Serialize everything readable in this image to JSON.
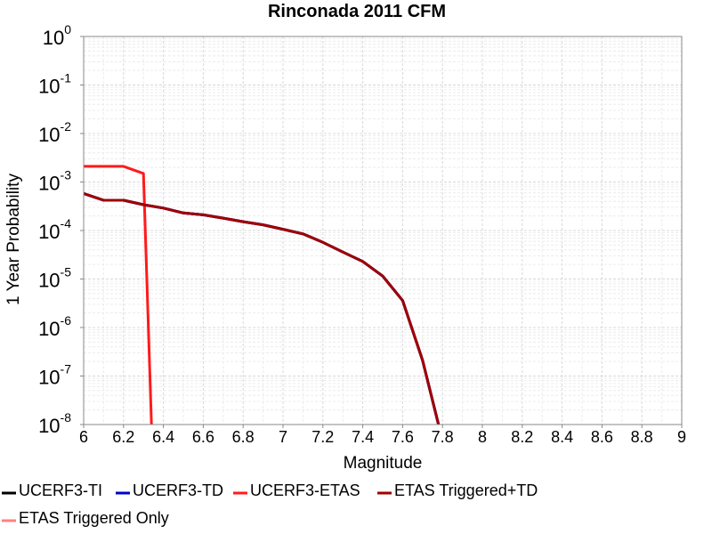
{
  "chart_data": {
    "type": "line",
    "title": "Rinconada 2011 CFM",
    "xlabel": "Magnitude",
    "ylabel": "1 Year Probability",
    "xlim": [
      6,
      9
    ],
    "ylim": [
      1e-08,
      1
    ],
    "yscale": "log",
    "grid": true,
    "legend_placement": "bottom",
    "x_ticks": [
      "6",
      "6.2",
      "6.4",
      "6.6",
      "6.8",
      "7",
      "7.2",
      "7.4",
      "7.6",
      "7.8",
      "8",
      "8.2",
      "8.4",
      "8.6",
      "8.8",
      "9"
    ],
    "y_ticks": [
      {
        "base": "10",
        "exp": "0",
        "value": 1
      },
      {
        "base": "10",
        "exp": "-1",
        "value": 0.1
      },
      {
        "base": "10",
        "exp": "-2",
        "value": 0.01
      },
      {
        "base": "10",
        "exp": "-3",
        "value": 0.001
      },
      {
        "base": "10",
        "exp": "-4",
        "value": 0.0001
      },
      {
        "base": "10",
        "exp": "-5",
        "value": 1e-05
      },
      {
        "base": "10",
        "exp": "-6",
        "value": 1e-06
      },
      {
        "base": "10",
        "exp": "-7",
        "value": 1e-07
      },
      {
        "base": "10",
        "exp": "-8",
        "value": 1e-08
      }
    ],
    "series": [
      {
        "name": "UCERF3-TI",
        "color": "#000000",
        "x": [
          6.0,
          6.1,
          6.2,
          6.3,
          6.4,
          6.5,
          6.6,
          6.7,
          6.8,
          6.9,
          7.0,
          7.1,
          7.2,
          7.3,
          7.4,
          7.5,
          7.6,
          7.7,
          7.78
        ],
        "y": [
          0.00058,
          0.00042,
          0.00042,
          0.00034,
          0.00029,
          0.00023,
          0.00021,
          0.00018,
          0.000152,
          0.000131,
          0.000106,
          8.5e-05,
          5.7e-05,
          3.6e-05,
          2.3e-05,
          1.15e-05,
          3.6e-06,
          2.1e-07,
          1e-08
        ]
      },
      {
        "name": "UCERF3-TD",
        "color": "#0000cc",
        "x": [
          6.0,
          6.1,
          6.2,
          6.3,
          6.4,
          6.5,
          6.6,
          6.7,
          6.8,
          6.9,
          7.0,
          7.1,
          7.2,
          7.3,
          7.4,
          7.5,
          7.6,
          7.7,
          7.78
        ],
        "y": [
          0.00058,
          0.00042,
          0.00042,
          0.00034,
          0.00029,
          0.00023,
          0.00021,
          0.00018,
          0.000152,
          0.000131,
          0.000106,
          8.5e-05,
          5.7e-05,
          3.6e-05,
          2.3e-05,
          1.15e-05,
          3.6e-06,
          2.1e-07,
          1e-08
        ]
      },
      {
        "name": "UCERF3-ETAS",
        "color": "#ff1a1a",
        "x": [
          6.0,
          6.1,
          6.2,
          6.3,
          6.34
        ],
        "y": [
          0.0021,
          0.0021,
          0.0021,
          0.0015,
          1e-08
        ]
      },
      {
        "name": "ETAS Triggered+TD",
        "color": "#a00000",
        "x": [
          6.0,
          6.1,
          6.2,
          6.3,
          6.4,
          6.5,
          6.6,
          6.7,
          6.8,
          6.9,
          7.0,
          7.1,
          7.2,
          7.3,
          7.4,
          7.5,
          7.6,
          7.7,
          7.78
        ],
        "y": [
          0.00058,
          0.00042,
          0.00042,
          0.00034,
          0.00029,
          0.00023,
          0.00021,
          0.00018,
          0.000152,
          0.000131,
          0.000106,
          8.5e-05,
          5.7e-05,
          3.6e-05,
          2.3e-05,
          1.15e-05,
          3.6e-06,
          2.1e-07,
          1e-08
        ]
      },
      {
        "name": "ETAS Triggered Only",
        "color": "#ff8080",
        "x": [],
        "y": []
      }
    ]
  }
}
